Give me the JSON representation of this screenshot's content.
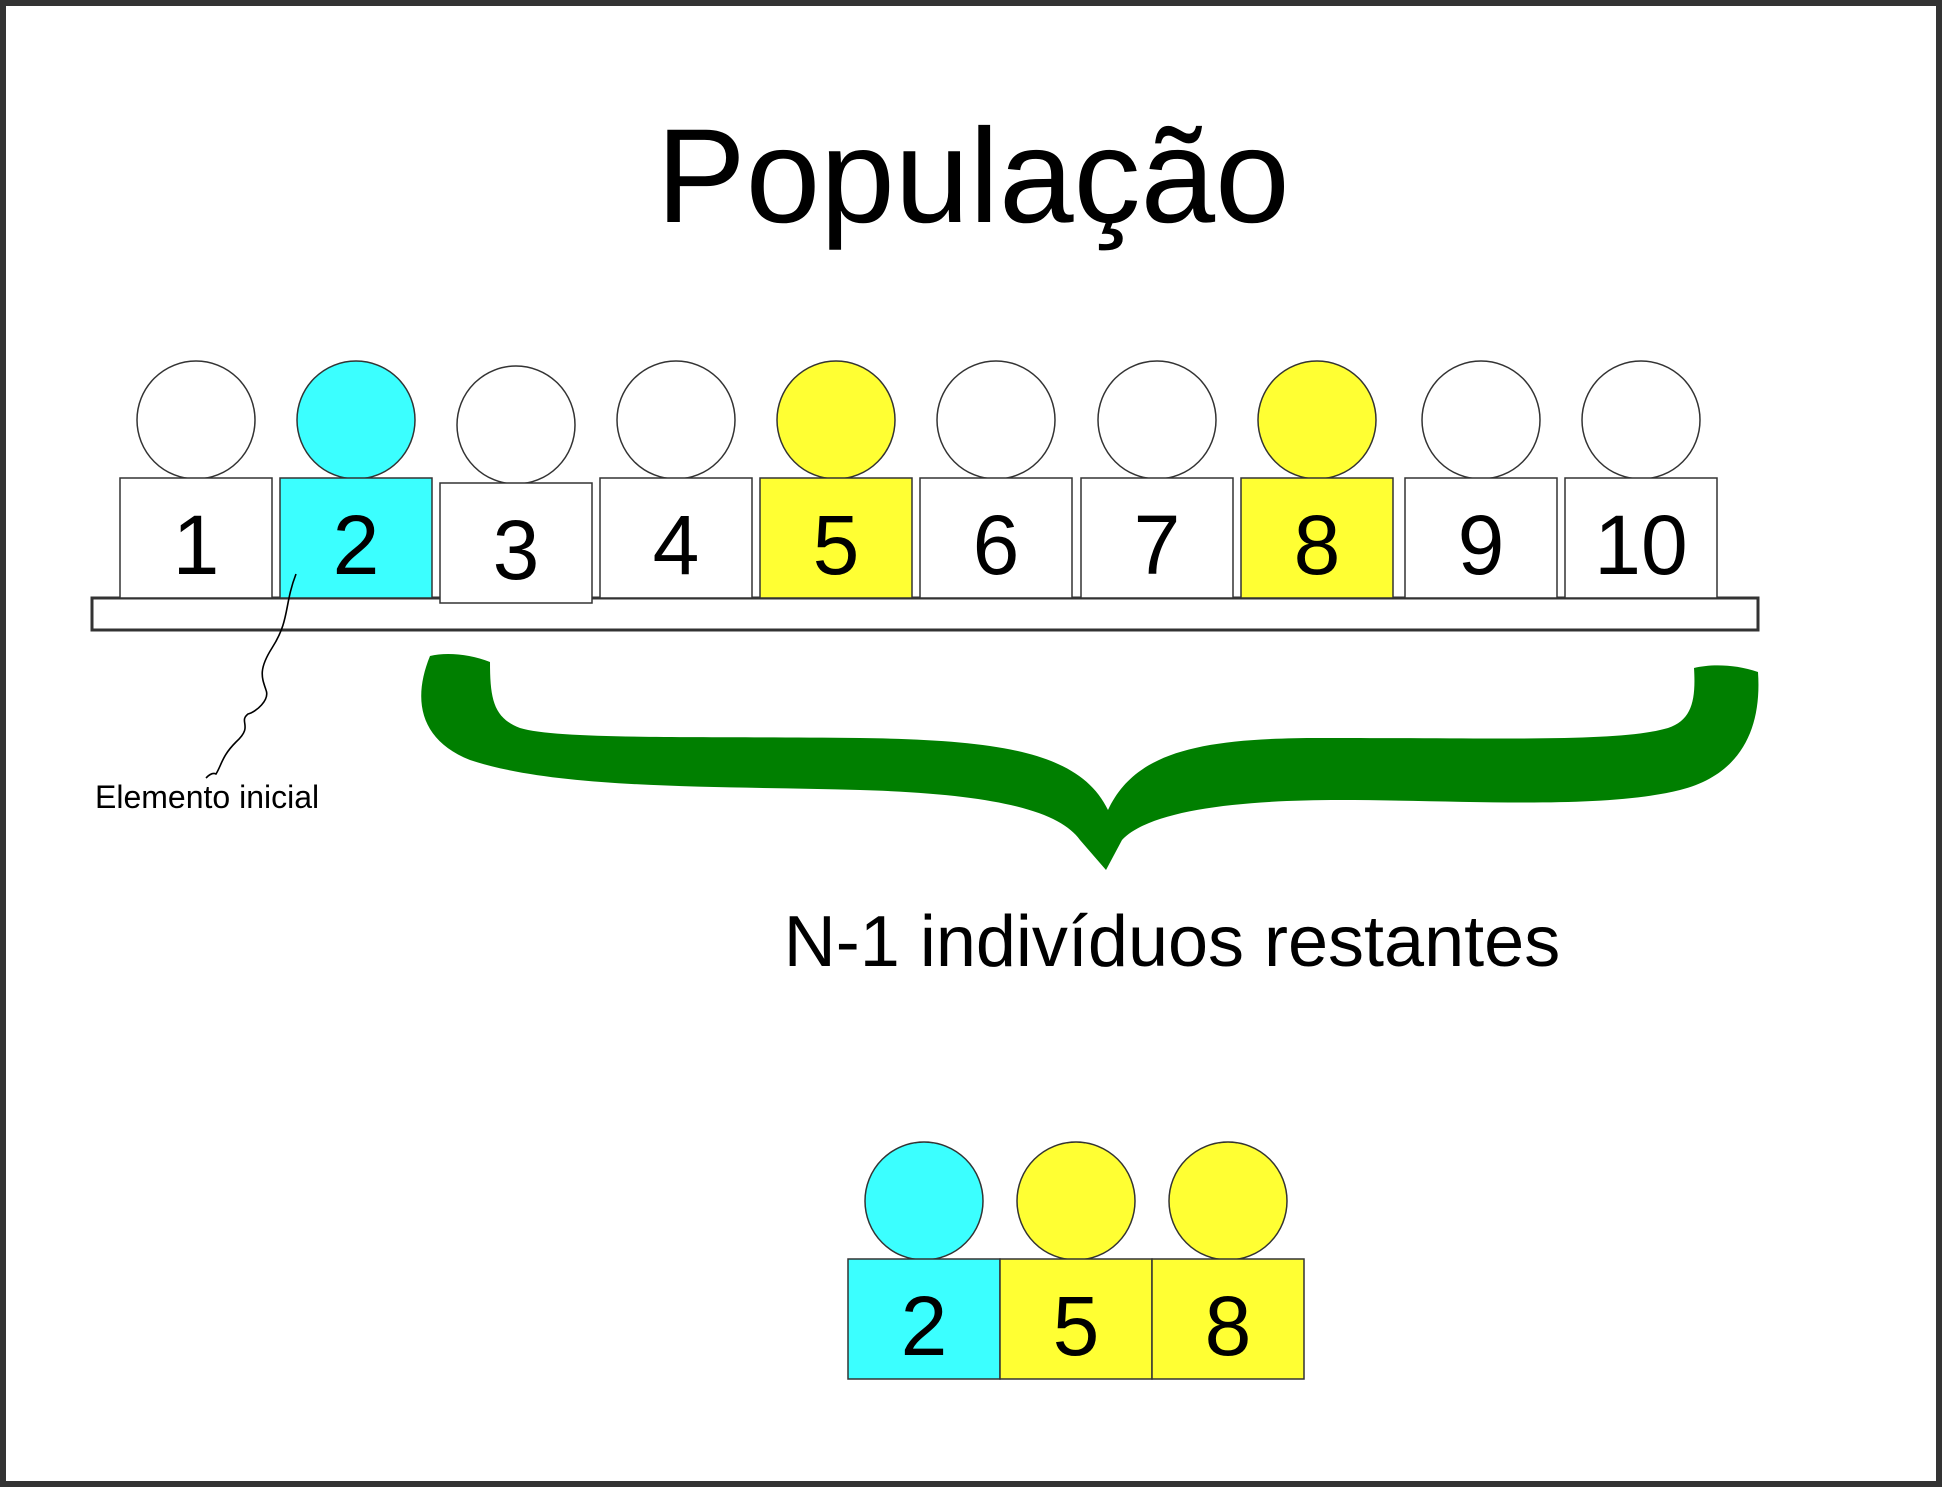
{
  "title": "População",
  "initial_label": "Elemento inicial",
  "remaining_label": "N-1 indivíduos restantes",
  "colors": {
    "initial": "#3BFFFF",
    "selected": "#FFFF33",
    "unselected": "#FFFFFF",
    "brace": "#007F00",
    "stroke": "#333333"
  },
  "population": [
    {
      "number": "1",
      "state": "unselected"
    },
    {
      "number": "2",
      "state": "initial"
    },
    {
      "number": "3",
      "state": "unselected"
    },
    {
      "number": "4",
      "state": "unselected"
    },
    {
      "number": "5",
      "state": "selected"
    },
    {
      "number": "6",
      "state": "unselected"
    },
    {
      "number": "7",
      "state": "unselected"
    },
    {
      "number": "8",
      "state": "selected"
    },
    {
      "number": "9",
      "state": "unselected"
    },
    {
      "number": "10",
      "state": "unselected"
    }
  ],
  "sample": [
    {
      "number": "2",
      "state": "initial"
    },
    {
      "number": "5",
      "state": "selected"
    },
    {
      "number": "8",
      "state": "selected"
    }
  ]
}
